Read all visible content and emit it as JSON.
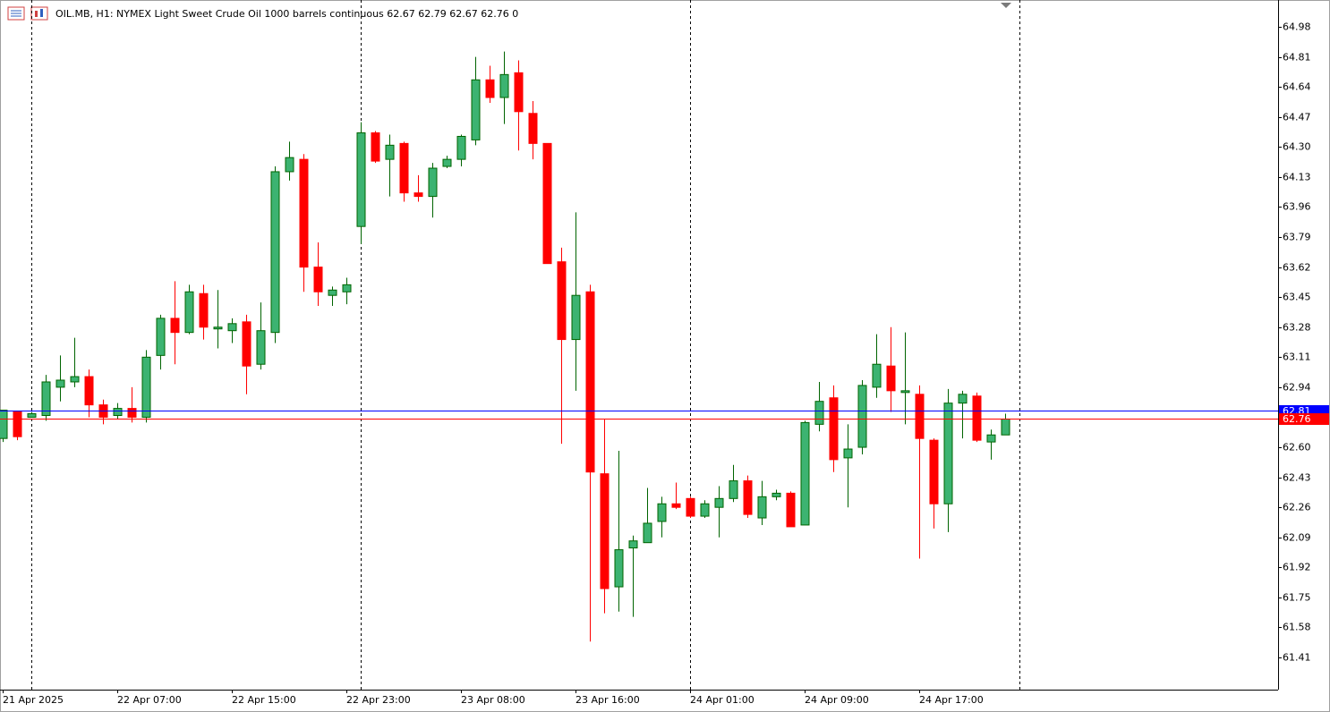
{
  "chart_data": {
    "type": "candlestick",
    "title": "OIL.MB, H1:  NYMEX Light Sweet Crude Oil 1000 barrels continuous  62.67 62.79 62.67 62.76  0",
    "categories": [
      "21 Apr 2025",
      null,
      null,
      null,
      null,
      null,
      null,
      null,
      "22 Apr 07:00",
      null,
      null,
      null,
      null,
      null,
      null,
      null,
      "22 Apr 15:00",
      null,
      null,
      null,
      null,
      null,
      null,
      null,
      "22 Apr 23:00",
      null,
      null,
      null,
      null,
      null,
      null,
      null,
      "23 Apr 08:00",
      null,
      null,
      null,
      null,
      null,
      null,
      null,
      "23 Apr 16:00",
      null,
      null,
      null,
      null,
      null,
      null,
      null,
      "24 Apr 01:00",
      null,
      null,
      null,
      null,
      null,
      null,
      null,
      "24 Apr 09:00",
      null,
      null,
      null,
      null,
      null,
      null,
      null,
      "24 Apr 17:00",
      null,
      null,
      null,
      null,
      null,
      null
    ],
    "open": [
      62.65,
      62.8,
      62.77,
      62.78,
      62.94,
      62.97,
      63.0,
      62.84,
      62.78,
      62.82,
      62.77,
      63.12,
      63.33,
      63.25,
      63.47,
      63.27,
      63.26,
      63.31,
      63.07,
      63.25,
      64.16,
      64.23,
      63.62,
      63.46,
      63.48,
      63.85,
      64.38,
      64.23,
      64.32,
      64.04,
      64.02,
      64.19,
      64.23,
      64.34,
      64.68,
      64.58,
      64.72,
      64.49,
      64.32,
      63.65,
      63.21,
      63.48,
      62.45,
      61.81,
      62.03,
      62.06,
      62.18,
      62.28,
      62.31,
      62.21,
      62.26,
      62.31,
      62.41,
      62.2,
      62.32,
      62.34,
      62.16,
      62.73,
      62.88,
      62.54,
      62.6,
      62.94,
      63.06,
      62.91,
      62.9,
      62.64,
      62.28,
      62.85,
      62.89,
      62.63,
      62.67
    ],
    "high": [
      62.81,
      62.8,
      62.8,
      63.01,
      63.12,
      63.22,
      63.04,
      62.87,
      62.85,
      62.94,
      63.15,
      63.35,
      63.54,
      63.52,
      63.52,
      63.49,
      63.33,
      63.35,
      63.42,
      64.19,
      64.33,
      64.26,
      63.76,
      63.51,
      63.56,
      64.44,
      64.39,
      64.37,
      64.33,
      64.14,
      64.21,
      64.25,
      64.37,
      64.81,
      64.76,
      64.84,
      64.79,
      64.56,
      64.32,
      63.73,
      63.93,
      63.52,
      62.76,
      62.58,
      62.1,
      62.37,
      62.32,
      62.4,
      62.32,
      62.3,
      62.38,
      62.5,
      62.44,
      62.41,
      62.36,
      62.35,
      62.75,
      62.97,
      62.95,
      62.73,
      62.98,
      63.24,
      63.28,
      63.25,
      62.95,
      62.65,
      62.93,
      62.92,
      62.91,
      62.7,
      62.79
    ],
    "low": [
      62.63,
      62.64,
      62.77,
      62.75,
      62.86,
      62.94,
      62.77,
      62.73,
      62.76,
      62.74,
      62.74,
      63.04,
      63.07,
      63.24,
      63.21,
      63.16,
      63.19,
      62.9,
      63.04,
      63.19,
      64.11,
      63.48,
      63.4,
      63.4,
      63.41,
      63.75,
      64.21,
      64.02,
      63.99,
      63.99,
      63.9,
      64.18,
      64.19,
      64.31,
      64.55,
      64.43,
      64.28,
      64.23,
      63.64,
      62.62,
      62.92,
      61.5,
      61.66,
      61.67,
      61.64,
      62.06,
      62.09,
      62.25,
      62.2,
      62.2,
      62.09,
      62.29,
      62.2,
      62.16,
      62.3,
      62.15,
      62.16,
      62.69,
      62.46,
      62.26,
      62.56,
      62.88,
      62.8,
      62.73,
      61.97,
      62.14,
      62.12,
      62.65,
      62.63,
      62.53,
      62.67
    ],
    "close": [
      62.81,
      62.66,
      62.79,
      62.97,
      62.98,
      63.0,
      62.84,
      62.77,
      62.82,
      62.77,
      63.11,
      63.33,
      63.25,
      63.48,
      63.28,
      63.28,
      63.3,
      63.06,
      63.26,
      64.16,
      64.24,
      63.62,
      63.48,
      63.49,
      63.52,
      64.38,
      64.22,
      64.31,
      64.04,
      64.02,
      64.18,
      64.23,
      64.36,
      64.68,
      64.58,
      64.71,
      64.5,
      64.32,
      63.64,
      63.21,
      63.46,
      62.46,
      61.8,
      62.02,
      62.07,
      62.17,
      62.28,
      62.26,
      62.21,
      62.28,
      62.31,
      62.41,
      62.22,
      62.32,
      62.34,
      62.15,
      62.74,
      62.86,
      62.53,
      62.59,
      62.95,
      63.07,
      62.92,
      62.92,
      62.65,
      62.28,
      62.85,
      62.9,
      62.64,
      62.67,
      62.76
    ],
    "up_color": "#3cb371",
    "up_border": "#006400",
    "down_color": "#ff0000",
    "ylim": [
      61.228,
      65.132
    ],
    "yticks": [
      64.98,
      64.81,
      64.64,
      64.47,
      {
        "value": 64.3,
        "label": "64.30"
      },
      64.13,
      63.96,
      63.79,
      63.62,
      63.45,
      63.28,
      63.11,
      62.94,
      {
        "value": 62.6,
        "label": "62.60"
      },
      62.43,
      62.26,
      62.09,
      61.92,
      61.75,
      61.58,
      61.41
    ],
    "price_lines": [
      {
        "value": 62.81,
        "color": "#0000ff"
      },
      {
        "value": 62.76,
        "color": "#ff0000"
      }
    ],
    "grid": false
  }
}
